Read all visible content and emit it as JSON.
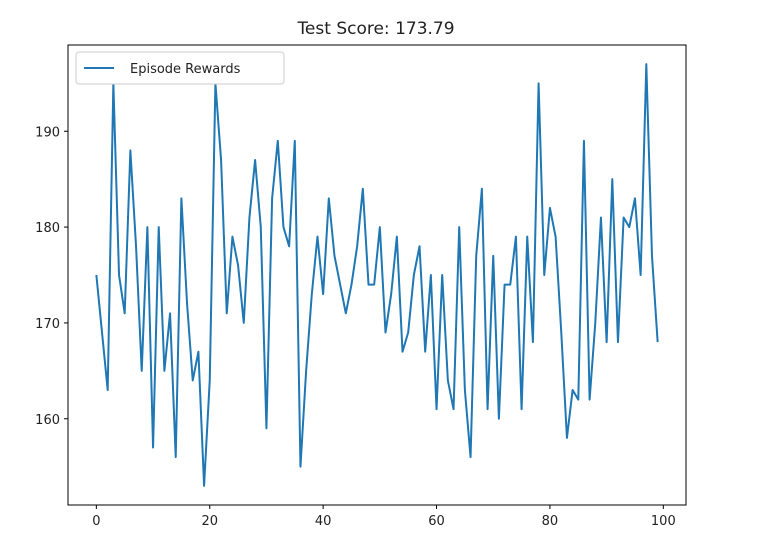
{
  "chart_data": {
    "type": "line",
    "title": "Test Score: 173.79",
    "xlabel": "",
    "ylabel": "",
    "xlim": [
      -5,
      104
    ],
    "ylim": [
      151,
      199
    ],
    "x_ticks": [
      0,
      20,
      40,
      60,
      80,
      100
    ],
    "y_ticks": [
      160,
      170,
      180,
      190
    ],
    "grid": false,
    "legend_position": "top-left",
    "series": [
      {
        "name": "Episode Rewards",
        "color": "#1f77b4",
        "x": [
          0,
          1,
          2,
          3,
          4,
          5,
          6,
          7,
          8,
          9,
          10,
          11,
          12,
          13,
          14,
          15,
          16,
          17,
          18,
          19,
          20,
          21,
          22,
          23,
          24,
          25,
          26,
          27,
          28,
          29,
          30,
          31,
          32,
          33,
          34,
          35,
          36,
          37,
          38,
          39,
          40,
          41,
          42,
          43,
          44,
          45,
          46,
          47,
          48,
          49,
          50,
          51,
          52,
          53,
          54,
          55,
          56,
          57,
          58,
          59,
          60,
          61,
          62,
          63,
          64,
          65,
          66,
          67,
          68,
          69,
          70,
          71,
          72,
          73,
          74,
          75,
          76,
          77,
          78,
          79,
          80,
          81,
          82,
          83,
          84,
          85,
          86,
          87,
          88,
          89,
          90,
          91,
          92,
          93,
          94,
          95,
          96,
          97,
          98,
          99
        ],
        "values": [
          175,
          169,
          163,
          195,
          175,
          171,
          188,
          178,
          165,
          180,
          157,
          180,
          165,
          171,
          156,
          183,
          172,
          164,
          167,
          153,
          164,
          195,
          187,
          171,
          179,
          176,
          170,
          181,
          187,
          180,
          159,
          183,
          189,
          180,
          178,
          189,
          155,
          165,
          173,
          179,
          173,
          183,
          177,
          174,
          171,
          174,
          178,
          184,
          174,
          174,
          180,
          169,
          173,
          179,
          167,
          169,
          175,
          178,
          167,
          175,
          161,
          175,
          164,
          161,
          180,
          163,
          156,
          177,
          184,
          161,
          177,
          160,
          174,
          174,
          179,
          161,
          179,
          168,
          195,
          175,
          182,
          179,
          169,
          158,
          163,
          162,
          189,
          162,
          170,
          181,
          168,
          185,
          168,
          181,
          180,
          183,
          175,
          197,
          177,
          168
        ]
      }
    ]
  }
}
